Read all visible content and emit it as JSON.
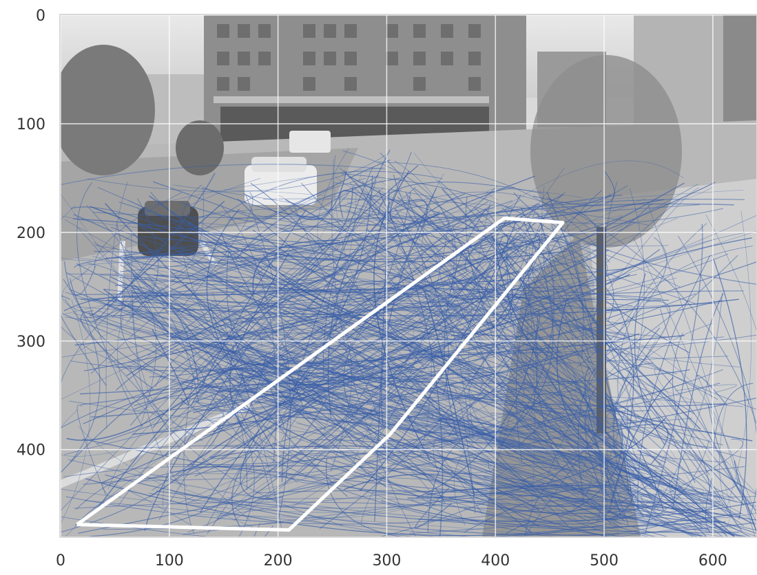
{
  "chart_data": {
    "type": "image-with-trajectories",
    "title": "",
    "xlabel": "",
    "ylabel": "",
    "xlim": [
      0,
      640
    ],
    "ylim": [
      480,
      0
    ],
    "y_axis_inverted": true,
    "grid": true,
    "xticks": [
      0,
      100,
      200,
      300,
      400,
      500,
      600
    ],
    "yticks": [
      0,
      100,
      200,
      300,
      400
    ],
    "background": "grayscale street-corner photo (cars, buildings, sidewalk, tree)",
    "trajectory_color": "#3a5fa8",
    "polygon_color": "#ffffff",
    "polygon": [
      [
        15,
        469
      ],
      [
        210,
        474
      ],
      [
        303,
        386
      ],
      [
        462,
        191
      ],
      [
        408,
        187
      ],
      [
        15,
        469
      ]
    ]
  }
}
